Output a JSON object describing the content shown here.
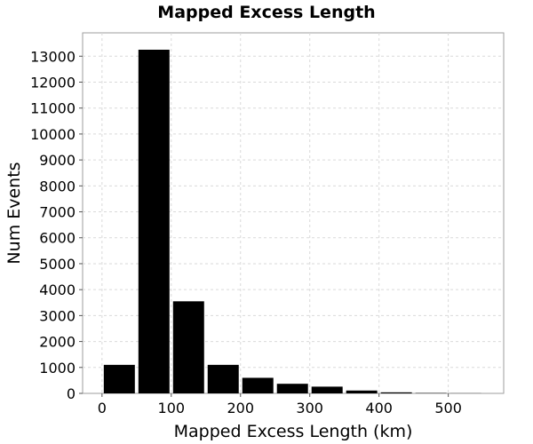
{
  "chart_data": {
    "type": "bar",
    "title": "Mapped Excess Length",
    "xlabel": "Mapped Excess Length (km)",
    "ylabel": "Num Events",
    "bin_width": 50,
    "bins": [
      {
        "start": 0,
        "end": 50,
        "value": 1100
      },
      {
        "start": 50,
        "end": 100,
        "value": 13250
      },
      {
        "start": 100,
        "end": 150,
        "value": 3550
      },
      {
        "start": 150,
        "end": 200,
        "value": 1100
      },
      {
        "start": 200,
        "end": 250,
        "value": 600
      },
      {
        "start": 250,
        "end": 300,
        "value": 370
      },
      {
        "start": 300,
        "end": 350,
        "value": 260
      },
      {
        "start": 350,
        "end": 400,
        "value": 110
      },
      {
        "start": 400,
        "end": 450,
        "value": 40
      },
      {
        "start": 450,
        "end": 500,
        "value": 15
      },
      {
        "start": 500,
        "end": 550,
        "value": 5
      }
    ],
    "xlim": [
      -28,
      580
    ],
    "ylim": [
      0,
      13900
    ],
    "x_ticks": [
      0,
      100,
      200,
      300,
      400,
      500
    ],
    "y_ticks": [
      0,
      1000,
      2000,
      3000,
      4000,
      5000,
      6000,
      7000,
      8000,
      9000,
      10000,
      11000,
      12000,
      13000
    ],
    "grid": true,
    "bar_color": "#000000",
    "legend": "none"
  }
}
